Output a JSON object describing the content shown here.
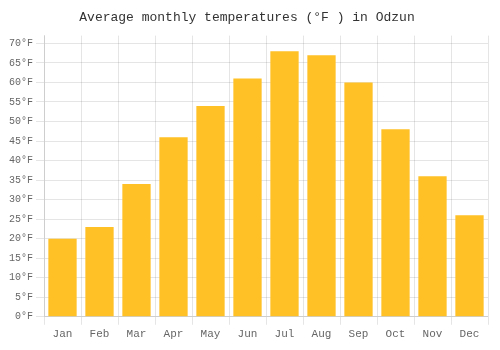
{
  "chart_data": {
    "type": "bar",
    "title": "Average monthly temperatures (°F ) in Odzun",
    "categories": [
      "Jan",
      "Feb",
      "Mar",
      "Apr",
      "May",
      "Jun",
      "Jul",
      "Aug",
      "Sep",
      "Oct",
      "Nov",
      "Dec"
    ],
    "values": [
      20,
      23,
      34,
      46,
      54,
      61,
      68,
      67,
      60,
      48,
      36,
      26
    ],
    "color": "#FFC125",
    "ylim": [
      0,
      72
    ],
    "yticks": [
      {
        "value": 0,
        "label": "0°F"
      },
      {
        "value": 5,
        "label": "5°F"
      },
      {
        "value": 10,
        "label": "10°F"
      },
      {
        "value": 15,
        "label": "15°F"
      },
      {
        "value": 20,
        "label": "20°F"
      },
      {
        "value": 25,
        "label": "25°F"
      },
      {
        "value": 30,
        "label": "30°F"
      },
      {
        "value": 35,
        "label": "35°F"
      },
      {
        "value": 40,
        "label": "40°F"
      },
      {
        "value": 45,
        "label": "45°F"
      },
      {
        "value": 50,
        "label": "50°F"
      },
      {
        "value": 55,
        "label": "55°F"
      },
      {
        "value": 60,
        "label": "60°F"
      },
      {
        "value": 65,
        "label": "65°F"
      },
      {
        "value": 70,
        "label": "70°F"
      }
    ],
    "grid": true
  }
}
